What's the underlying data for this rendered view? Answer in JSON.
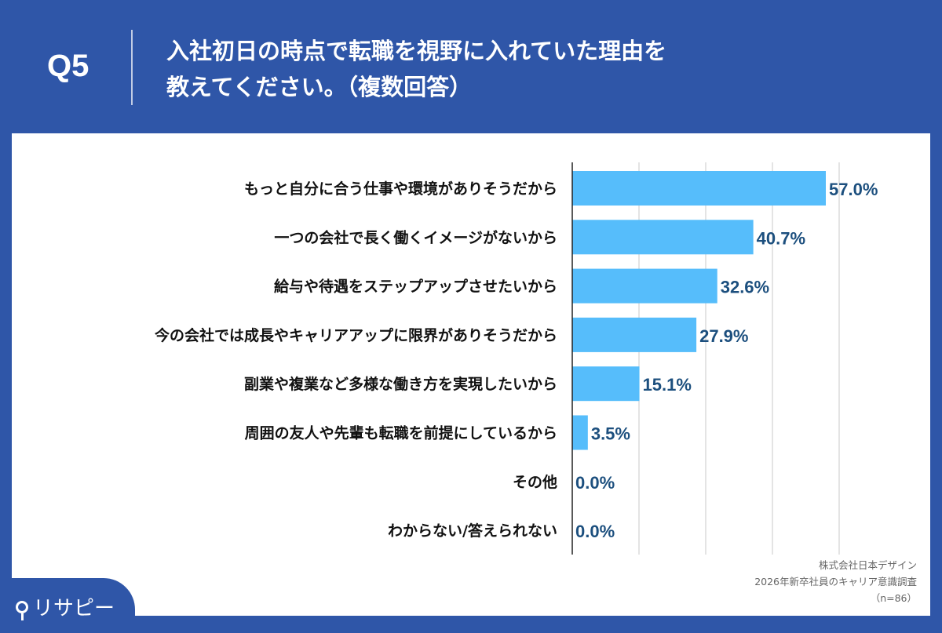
{
  "header": {
    "question": "Q5",
    "title": "入社初日の時点で転職を視野に入れていた理由を\n教えてください。（複数回答）"
  },
  "logo": {
    "text": "リサピー"
  },
  "note": {
    "lines": [
      "株式会社日本デザイン",
      "2026年新卒社員のキャリア意識調査",
      "（n=86）"
    ]
  },
  "chart_data": {
    "type": "bar",
    "orientation": "horizontal",
    "categories": [
      "もっと自分に合う仕事や環境がありそうだから",
      "一つの会社で長く働くイメージがないから",
      "給与や待遇をステップアップさせたいから",
      "今の会社では成長やキャリアアップに限界がありそうだから",
      "副業や複業など多様な働き方を実現したいから",
      "周囲の友人や先輩も転職を前提にしているから",
      "その他",
      "わからない/答えられない"
    ],
    "values": [
      57.0,
      40.7,
      32.6,
      27.9,
      15.1,
      3.5,
      0.0,
      0.0
    ],
    "labels": [
      "57.0%",
      "40.7%",
      "32.6%",
      "27.9%",
      "15.1%",
      "3.5%",
      "0.0%",
      "0.0%"
    ],
    "xlim": [
      0,
      60
    ],
    "grid": true,
    "bar_color": "#56bdfb",
    "label_color": "#1c4f7e"
  }
}
